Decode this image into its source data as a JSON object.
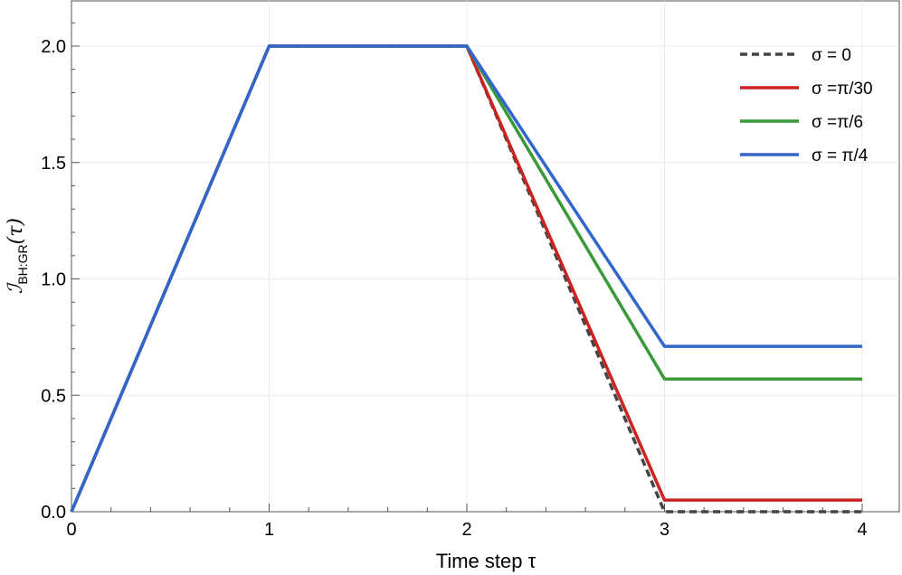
{
  "chart_data": {
    "type": "line",
    "xlabel": "Time step τ",
    "ylabel": {
      "main": "ℐ",
      "sub": "BH:GR",
      "arg": "(τ)"
    },
    "xlim": [
      0,
      4
    ],
    "ylim": [
      0,
      2.2
    ],
    "x_ticks": [
      0,
      1,
      2,
      3,
      4
    ],
    "x_tick_labels": [
      "0",
      "1",
      "2",
      "3",
      "4"
    ],
    "y_ticks": [
      0,
      0.5,
      1.0,
      1.5,
      2.0
    ],
    "y_tick_labels": [
      "0.0",
      "0.5",
      "1.0",
      "1.5",
      "2.0"
    ],
    "grid": true,
    "legend_position": "top-right",
    "series": [
      {
        "name": "σ = 0",
        "color": "#444444",
        "dash": true,
        "x": [
          0,
          1,
          2,
          3,
          4
        ],
        "y": [
          0,
          2.0,
          2.0,
          0.0,
          0.0
        ]
      },
      {
        "name": "σ =π/30",
        "color": "#cc2222",
        "dash": false,
        "x": [
          0,
          1,
          2,
          3,
          4
        ],
        "y": [
          0,
          2.0,
          2.0,
          0.05,
          0.05
        ]
      },
      {
        "name": "σ =π/6",
        "color": "#3a9a3a",
        "dash": false,
        "x": [
          0,
          1,
          2,
          3,
          4
        ],
        "y": [
          0,
          2.0,
          2.0,
          0.57,
          0.57
        ]
      },
      {
        "name": "σ = π/4",
        "color": "#3366cc",
        "dash": false,
        "x": [
          0,
          1,
          2,
          3,
          4
        ],
        "y": [
          0,
          2.0,
          2.0,
          0.71,
          0.71
        ]
      }
    ]
  }
}
